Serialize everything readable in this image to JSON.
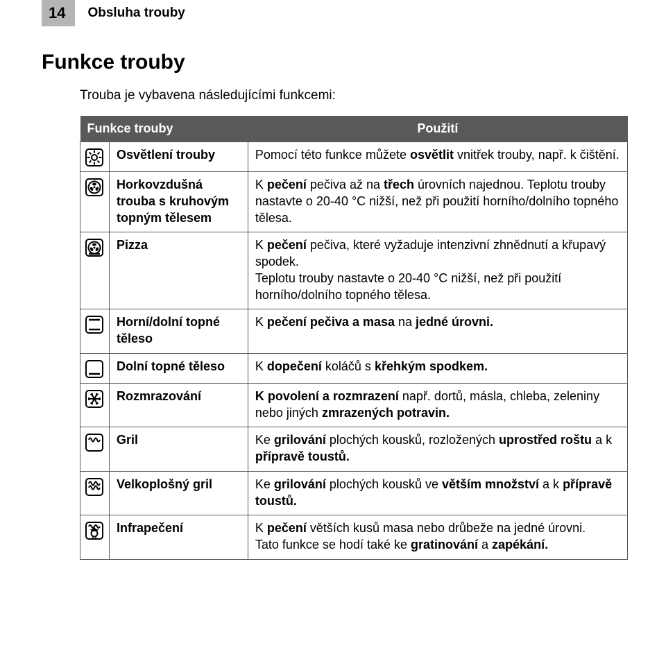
{
  "header": {
    "page_number": "14",
    "section": "Obsluha trouby"
  },
  "heading": "Funkce trouby",
  "intro": "Trouba je vybavena následujícími funkcemi:",
  "table": {
    "col_left": "Funkce trouby",
    "col_right": "Použití",
    "rows": [
      {
        "icon": "light",
        "fn": "Osvětlení trouby",
        "use": [
          {
            "t": "Pomocí této funkce můžete "
          },
          {
            "t": "osvětlit",
            "b": true
          },
          {
            "t": " vnitřek trouby, např. k čištění."
          }
        ]
      },
      {
        "icon": "fan-ring",
        "fn": "Horkovzdušná trouba s kruhovým topným tělesem",
        "use": [
          {
            "t": "K "
          },
          {
            "t": "pečení",
            "b": true
          },
          {
            "t": " pečiva až na "
          },
          {
            "t": "třech",
            "b": true
          },
          {
            "t": " úrovních najednou. Teplotu trouby nastavte o 20-40 °C nižší, než při použití horního/dolního topného tělesa."
          }
        ]
      },
      {
        "icon": "pizza",
        "fn": "Pizza",
        "use": [
          {
            "t": "K "
          },
          {
            "t": "pečení",
            "b": true
          },
          {
            "t": " pečiva, které vyžaduje intenzivní zhnědnutí a křupavý spodek.\nTeplotu trouby nastavte o 20-40 °C nižší, než při použití horního/dolního topného tělesa."
          }
        ]
      },
      {
        "icon": "top-bottom",
        "fn": "Horní/dolní topné těleso",
        "use": [
          {
            "t": "K "
          },
          {
            "t": "pečení pečiva a masa",
            "b": true
          },
          {
            "t": " na "
          },
          {
            "t": "jedné úrovni.",
            "b": true
          }
        ]
      },
      {
        "icon": "bottom",
        "fn": "Dolní topné těleso",
        "use": [
          {
            "t": "K "
          },
          {
            "t": "dopečení",
            "b": true
          },
          {
            "t": "  koláčů s "
          },
          {
            "t": "křehkým spodkem.",
            "b": true
          }
        ]
      },
      {
        "icon": "defrost",
        "fn": "Rozmrazování",
        "use": [
          {
            "t": "K povolení a rozmrazení",
            "b": true
          },
          {
            "t": "  např. dortů, másla, chleba, zeleniny nebo jiných  "
          },
          {
            "t": "zmrazených potravin.",
            "b": true
          }
        ]
      },
      {
        "icon": "grill",
        "fn": "Gril",
        "use": [
          {
            "t": "Ke "
          },
          {
            "t": "grilování",
            "b": true
          },
          {
            "t": " plochých kousků, rozložených "
          },
          {
            "t": "uprostřed roštu",
            "b": true
          },
          {
            "t": "  a k "
          },
          {
            "t": "přípravě toustů.",
            "b": true
          }
        ]
      },
      {
        "icon": "full-grill",
        "fn": "Velkoplošný gril",
        "use": [
          {
            "t": "Ke "
          },
          {
            "t": "grilování",
            "b": true
          },
          {
            "t": " plochých kousků ve "
          },
          {
            "t": "větším množství",
            "b": true
          },
          {
            "t": " a k "
          },
          {
            "t": "přípravě toustů.",
            "b": true
          }
        ]
      },
      {
        "icon": "infra",
        "fn": "Infrapečení",
        "use": [
          {
            "t": "K "
          },
          {
            "t": "pečení",
            "b": true
          },
          {
            "t": " větších kusů masa nebo drůbeže na jedné úrovni.\nTato funkce se hodí také ke "
          },
          {
            "t": "gratinování",
            "b": true
          },
          {
            "t": " a "
          },
          {
            "t": "zapékání.",
            "b": true
          }
        ]
      }
    ]
  },
  "icons": {
    "stroke": "#000000",
    "fill": "#000000",
    "size": 28
  }
}
